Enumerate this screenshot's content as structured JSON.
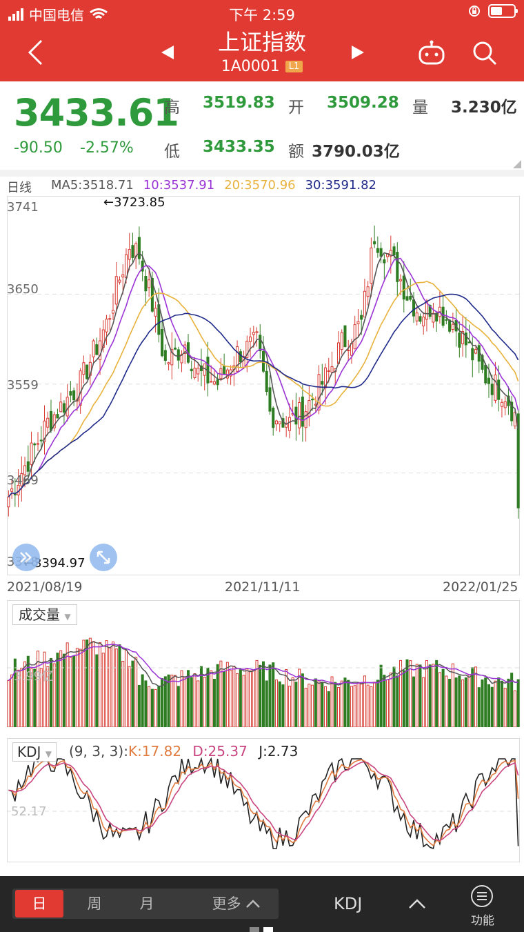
{
  "status_bar": {
    "carrier": "中国电信",
    "time": "下午 2:59"
  },
  "header": {
    "title": "上证指数",
    "code": "1A0001",
    "level": "L1"
  },
  "quote": {
    "price": "3433.61",
    "change": "-90.50",
    "change_pct": "-2.57%",
    "high_label": "高",
    "high": "3519.83",
    "open_label": "开",
    "open": "3509.28",
    "volume_label": "量",
    "volume": "3.230亿",
    "low_label": "低",
    "low": "3433.35",
    "amount_label": "额",
    "amount": "3790.03亿"
  },
  "main_chart": {
    "period": "日线",
    "ma5": "MA5:3518.71",
    "ma10": "10:3537.91",
    "ma20": "20:3570.96",
    "ma30": "30:3591.82",
    "y_labels": [
      "3741",
      "3650",
      "3559",
      "3469",
      "3378"
    ],
    "max_annotation": "←3723.85",
    "min_annotation": "←3394.97",
    "dates": [
      "2021/08/19",
      "2021/11/11",
      "2022/01/25"
    ]
  },
  "volume_chart": {
    "label": "成交量",
    "y_label": "3.99亿"
  },
  "kdj_chart": {
    "label": "KDJ",
    "params": "(9, 3, 3):",
    "k": "K:17.82",
    "d": "D:25.37",
    "j": "J:2.73",
    "y_label": "52.17"
  },
  "bottom_bar": {
    "tabs": [
      "日",
      "周",
      "月",
      "更多"
    ],
    "indicator": "KDJ",
    "function_label": "功能"
  },
  "colors": {
    "up": "#d83a31",
    "down": "#2e7d22",
    "ma5": "#555555",
    "ma10": "#9b33d6",
    "ma20": "#e8b23c",
    "ma30": "#1f2a8a",
    "header": "#e03a32"
  },
  "chart_data": {
    "type": "candlestick",
    "y_range": [
      3378,
      3741
    ],
    "ma5_last": 3518.71,
    "ma10_last": 3537.91,
    "ma20_last": 3570.96,
    "ma30_last": 3591.82,
    "high_marker": 3723.85,
    "low_marker": 3394.97,
    "x_dates_shown": [
      "2021/08/19",
      "2021/11/11",
      "2022/01/25"
    ]
  }
}
